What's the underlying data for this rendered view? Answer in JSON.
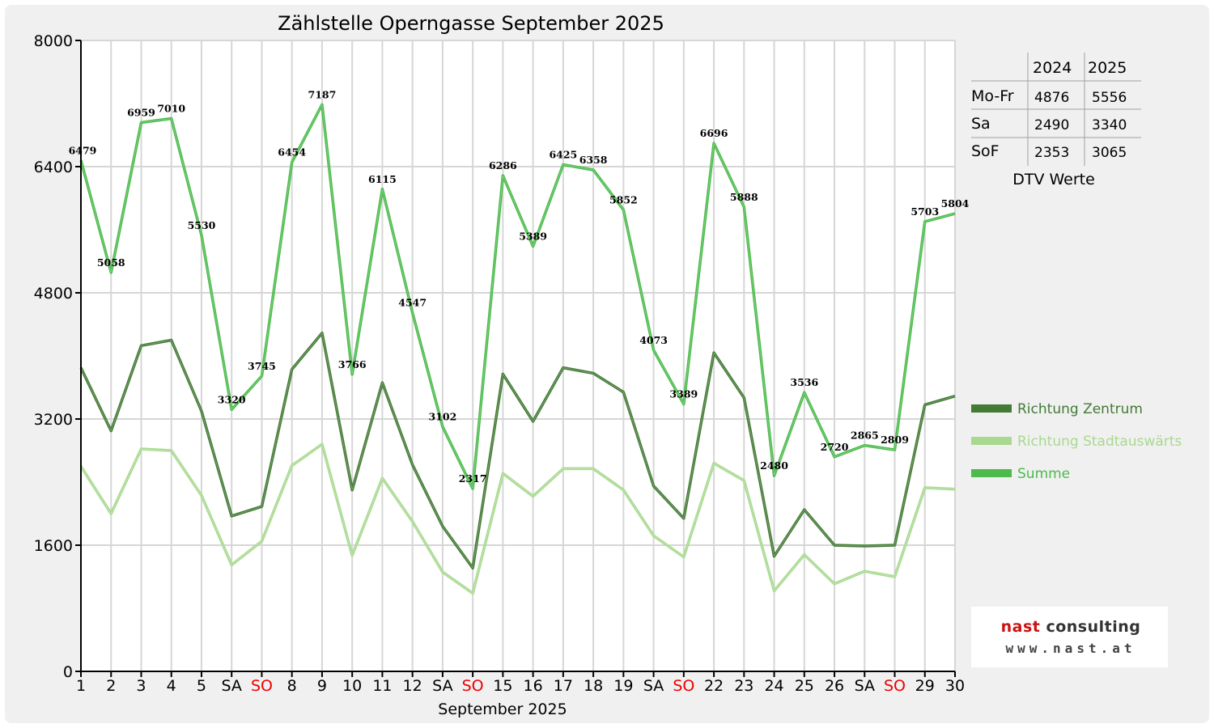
{
  "chart_data": {
    "type": "line",
    "title": "Zählstelle Operngasse September 2025",
    "xlabel": "September 2025",
    "ylabel": "",
    "ylim": [
      0,
      8000
    ],
    "yticks": [
      0,
      1600,
      3200,
      4800,
      6400,
      8000
    ],
    "grid": true,
    "legend_position": "right",
    "categories": [
      "1",
      "2",
      "3",
      "4",
      "5",
      "SA",
      "SO",
      "8",
      "9",
      "10",
      "11",
      "12",
      "SA",
      "SO",
      "15",
      "16",
      "17",
      "18",
      "19",
      "SA",
      "SO",
      "22",
      "23",
      "24",
      "25",
      "26",
      "SA",
      "SO",
      "29",
      "30"
    ],
    "red_categories": [
      "SO"
    ],
    "series": [
      {
        "name": "Richtung Zentrum",
        "color": "#437a35",
        "values": [
          3850,
          3050,
          4130,
          4200,
          3300,
          1970,
          2090,
          3830,
          4290,
          2300,
          3660,
          2620,
          1840,
          1310,
          3770,
          3170,
          3850,
          3780,
          3540,
          2350,
          1940,
          4040,
          3470,
          1460,
          2050,
          1600,
          1590,
          1600,
          3380,
          3490
        ]
      },
      {
        "name": "Richtung Stadtauswärts",
        "color": "#a8d98f",
        "values": [
          2600,
          2000,
          2820,
          2800,
          2230,
          1350,
          1650,
          2610,
          2880,
          1470,
          2450,
          1900,
          1260,
          990,
          2510,
          2220,
          2570,
          2570,
          2300,
          1720,
          1450,
          2640,
          2420,
          1020,
          1480,
          1110,
          1270,
          1200,
          2330,
          2310
        ]
      },
      {
        "name": "Summe",
        "color": "#4cbb4c",
        "values": [
          6479,
          5058,
          6959,
          7010,
          5530,
          3320,
          3745,
          6454,
          7187,
          3766,
          6115,
          4547,
          3102,
          2317,
          6286,
          5389,
          6425,
          6358,
          5852,
          4073,
          3389,
          6696,
          5888,
          2480,
          3536,
          2720,
          2865,
          2809,
          5703,
          5804
        ],
        "labels": [
          "6479",
          "5058",
          "6959",
          "7010",
          "5530",
          "3320",
          "3745",
          "6454",
          "7187",
          "3766",
          "6115",
          "4547",
          "3102",
          "2317",
          "6286",
          "5389",
          "6425",
          "6358",
          "5852",
          "4073",
          "3389",
          "6696",
          "5888",
          "2480",
          "3536",
          "2720",
          "2865",
          "2809",
          "5703",
          "5804"
        ]
      }
    ],
    "dtv_table": {
      "caption": "DTV Werte",
      "columns": [
        "",
        "2024",
        "2025"
      ],
      "rows": [
        {
          "label": "Mo-Fr",
          "v2024": "4876",
          "v2025": "5556"
        },
        {
          "label": "Sa",
          "v2024": "2490",
          "v2025": "3340"
        },
        {
          "label": "SoF",
          "v2024": "2353",
          "v2025": "3065"
        }
      ]
    }
  },
  "logo": {
    "name_prefix": "nast ",
    "name_suffix": "consulting",
    "url": "www.nast.at"
  }
}
